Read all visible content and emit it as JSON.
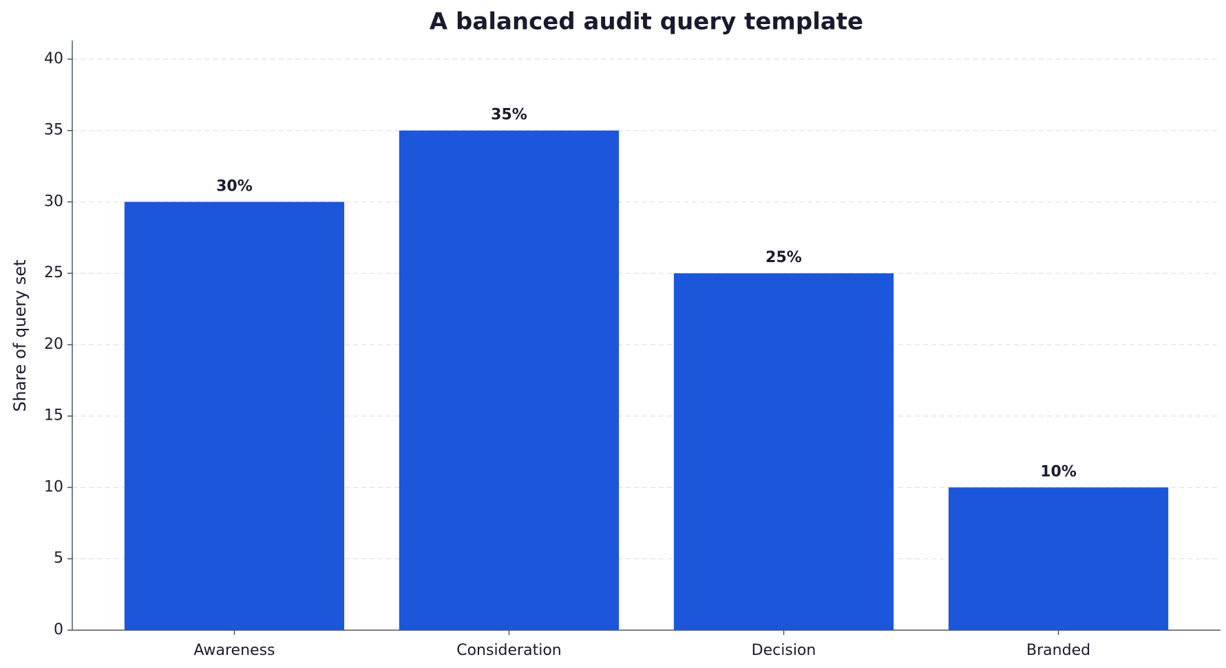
{
  "chart_data": {
    "type": "bar",
    "title": "A balanced audit query template",
    "y_label": "Share of query set",
    "categories": [
      "Awareness",
      "Consideration",
      "Decision",
      "Branded"
    ],
    "values": [
      30,
      35,
      25,
      10
    ],
    "value_labels": [
      "30%",
      "35%",
      "25%",
      "10%"
    ],
    "color": "#1c56db",
    "ylim": [
      0,
      41.3
    ],
    "yticks": [
      0,
      5,
      10,
      15,
      20,
      25,
      30,
      35,
      40
    ],
    "grid": true
  }
}
